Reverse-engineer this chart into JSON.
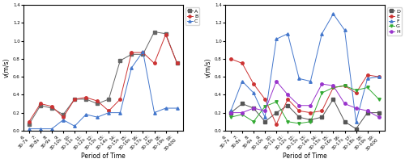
{
  "x_labels": [
    "6:\n30-7s",
    "7:\n30-8s",
    "8:\n30-9s",
    "9:\n30-10s",
    "10:\n30-11s",
    "11:\n30-12s",
    "12:\n30-13s",
    "13:\n30-14s",
    "14:\n30-15s",
    "15:\n30-16s",
    "16:\n30-17s",
    "17:\n30-18s",
    "18:\n30-19s",
    "19:\n30-600"
  ],
  "left": {
    "ylabel": "v(m/s)",
    "xlabel": "Period of Time",
    "ylim": [
      0.0,
      1.4
    ],
    "yticks": [
      0.0,
      0.2,
      0.4,
      0.6,
      0.8,
      1.0,
      1.2,
      1.4
    ],
    "series_order": [
      "A",
      "B",
      "C"
    ],
    "series": {
      "A": {
        "color": "#666666",
        "marker": "s",
        "markersize": 2.5,
        "values": [
          0.07,
          0.28,
          0.25,
          0.18,
          0.35,
          0.35,
          0.3,
          0.35,
          0.78,
          0.85,
          0.85,
          1.1,
          1.08,
          0.75
        ]
      },
      "B": {
        "color": "#cc3333",
        "marker": "o",
        "markersize": 2.5,
        "values": [
          0.1,
          0.3,
          0.27,
          0.15,
          0.35,
          0.37,
          0.33,
          0.22,
          0.35,
          0.87,
          0.87,
          0.75,
          1.07,
          0.75
        ]
      },
      "C": {
        "color": "#4477cc",
        "marker": "^",
        "markersize": 2.5,
        "values": [
          0.02,
          0.02,
          0.02,
          0.12,
          0.05,
          0.18,
          0.15,
          0.2,
          0.2,
          0.7,
          0.88,
          0.2,
          0.25,
          0.25
        ]
      }
    }
  },
  "right": {
    "ylabel": "v(m/s)",
    "xlabel": "Period of Time",
    "ylim": [
      0.0,
      1.4
    ],
    "yticks": [
      0.0,
      0.2,
      0.4,
      0.6,
      0.8,
      1.0,
      1.2,
      1.4
    ],
    "series_order": [
      "D",
      "E",
      "F",
      "G",
      "H"
    ],
    "series": {
      "D": {
        "color": "#555555",
        "marker": "s",
        "markersize": 2.5,
        "values": [
          0.2,
          0.3,
          0.25,
          0.1,
          0.2,
          0.28,
          0.15,
          0.12,
          0.15,
          0.35,
          0.1,
          0.02,
          0.2,
          0.2
        ]
      },
      "E": {
        "color": "#cc3333",
        "marker": "o",
        "markersize": 2.5,
        "values": [
          0.8,
          0.75,
          0.52,
          0.35,
          0.07,
          0.35,
          0.22,
          0.2,
          0.22,
          0.48,
          0.5,
          0.42,
          0.62,
          0.6
        ]
      },
      "F": {
        "color": "#4477cc",
        "marker": "^",
        "markersize": 2.5,
        "values": [
          0.22,
          0.55,
          0.42,
          0.15,
          1.02,
          1.08,
          0.58,
          0.55,
          1.08,
          1.3,
          1.12,
          0.1,
          0.58,
          0.6
        ]
      },
      "G": {
        "color": "#33aa33",
        "marker": "v",
        "markersize": 2.5,
        "values": [
          0.15,
          0.18,
          0.1,
          0.27,
          0.32,
          0.1,
          0.08,
          0.1,
          0.42,
          0.48,
          0.5,
          0.45,
          0.48,
          0.35
        ]
      },
      "H": {
        "color": "#9933cc",
        "marker": "o",
        "markersize": 2.5,
        "values": [
          0.2,
          0.2,
          0.25,
          0.22,
          0.55,
          0.4,
          0.28,
          0.28,
          0.52,
          0.5,
          0.3,
          0.25,
          0.22,
          0.15
        ]
      }
    }
  },
  "tick_rotation": 45,
  "tick_fontsize": 4,
  "label_fontsize": 5.5,
  "legend_fontsize": 4.5,
  "linewidth": 0.7,
  "figsize": [
    5.0,
    2.02
  ],
  "dpi": 100
}
